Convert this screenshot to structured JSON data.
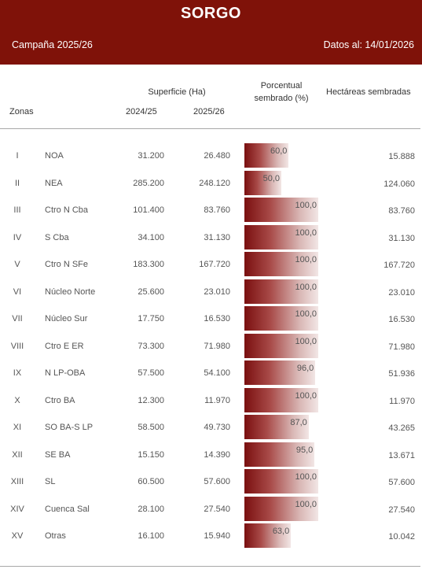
{
  "header": {
    "title": "SORGO",
    "campaign": "Campaña 2025/26",
    "date": "Datos al: 14/01/2026"
  },
  "columns": {
    "zones": "Zonas",
    "surface": "Superficie (Ha)",
    "year_prev": "2024/25",
    "year_curr": "2025/26",
    "percent_line1": "Porcentual",
    "percent_line2": "sembrado (%)",
    "sown": "Hectáreas sembradas"
  },
  "rows": [
    {
      "roman": "I",
      "zone": "NOA",
      "surf_prev": "31.200",
      "surf_curr": "26.480",
      "pct_label": "60,0",
      "pct": 60.0,
      "sown": "15.888"
    },
    {
      "roman": "II",
      "zone": "NEA",
      "surf_prev": "285.200",
      "surf_curr": "248.120",
      "pct_label": "50,0",
      "pct": 50.0,
      "sown": "124.060"
    },
    {
      "roman": "III",
      "zone": "Ctro N Cba",
      "surf_prev": "101.400",
      "surf_curr": "83.760",
      "pct_label": "100,0",
      "pct": 100.0,
      "sown": "83.760"
    },
    {
      "roman": "IV",
      "zone": "S Cba",
      "surf_prev": "34.100",
      "surf_curr": "31.130",
      "pct_label": "100,0",
      "pct": 100.0,
      "sown": "31.130"
    },
    {
      "roman": "V",
      "zone": "Ctro N SFe",
      "surf_prev": "183.300",
      "surf_curr": "167.720",
      "pct_label": "100,0",
      "pct": 100.0,
      "sown": "167.720"
    },
    {
      "roman": "VI",
      "zone": "Núcleo Norte",
      "surf_prev": "25.600",
      "surf_curr": "23.010",
      "pct_label": "100,0",
      "pct": 100.0,
      "sown": "23.010"
    },
    {
      "roman": "VII",
      "zone": "Núcleo Sur",
      "surf_prev": "17.750",
      "surf_curr": "16.530",
      "pct_label": "100,0",
      "pct": 100.0,
      "sown": "16.530"
    },
    {
      "roman": "VIII",
      "zone": "Ctro E ER",
      "surf_prev": "73.300",
      "surf_curr": "71.980",
      "pct_label": "100,0",
      "pct": 100.0,
      "sown": "71.980"
    },
    {
      "roman": "IX",
      "zone": "N LP-OBA",
      "surf_prev": "57.500",
      "surf_curr": "54.100",
      "pct_label": "96,0",
      "pct": 96.0,
      "sown": "51.936"
    },
    {
      "roman": "X",
      "zone": "Ctro BA",
      "surf_prev": "12.300",
      "surf_curr": "11.970",
      "pct_label": "100,0",
      "pct": 100.0,
      "sown": "11.970"
    },
    {
      "roman": "XI",
      "zone": "SO BA-S LP",
      "surf_prev": "58.500",
      "surf_curr": "49.730",
      "pct_label": "87,0",
      "pct": 87.0,
      "sown": "43.265"
    },
    {
      "roman": "XII",
      "zone": "SE BA",
      "surf_prev": "15.150",
      "surf_curr": "14.390",
      "pct_label": "95,0",
      "pct": 95.0,
      "sown": "13.671"
    },
    {
      "roman": "XIII",
      "zone": "SL",
      "surf_prev": "60.500",
      "surf_curr": "57.600",
      "pct_label": "100,0",
      "pct": 100.0,
      "sown": "57.600"
    },
    {
      "roman": "XIV",
      "zone": "Cuenca Sal",
      "surf_prev": "28.100",
      "surf_curr": "27.540",
      "pct_label": "100,0",
      "pct": 100.0,
      "sown": "27.540"
    },
    {
      "roman": "XV",
      "zone": "Otras",
      "surf_prev": "16.100",
      "surf_curr": "15.940",
      "pct_label": "63,0",
      "pct": 63.0,
      "sown": "10.042"
    }
  ],
  "colors": {
    "banner": "#7f1209",
    "bar_dark": "#7a0f0f",
    "bar_light": "#f2e6e5"
  }
}
